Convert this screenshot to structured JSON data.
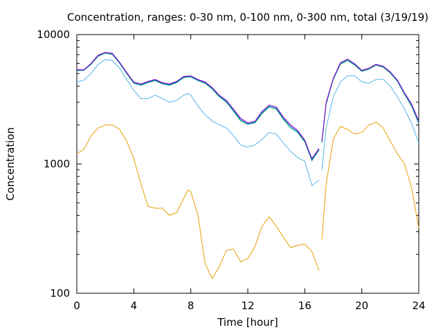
{
  "chart_data": {
    "type": "line",
    "title": "Concentration, ranges: 0-30 nm, 0-100 nm, 0-300 nm, total (3/19/19)",
    "xlabel": "Time [hour]",
    "ylabel": "Concentration",
    "xlim": [
      0,
      24
    ],
    "ylim": [
      100,
      10000
    ],
    "yscale": "log",
    "grid": false,
    "x_ticks": [
      0,
      4,
      8,
      12,
      16,
      20,
      24
    ],
    "x_tick_labels": [
      "0",
      "4",
      "8",
      "12",
      "16",
      "20",
      "24"
    ],
    "y_ticks": [
      100,
      1000,
      10000
    ],
    "y_tick_labels": [
      "100",
      "1000",
      "10000"
    ],
    "series": [
      {
        "color": "#e69f00",
        "segments": [
          [
            [
              0,
              1200
            ],
            [
              0.5,
              1300
            ],
            [
              1,
              1650
            ],
            [
              1.5,
              1900
            ],
            [
              2,
              2000
            ],
            [
              2.5,
              2000
            ],
            [
              3,
              1850
            ],
            [
              3.5,
              1500
            ],
            [
              4,
              1100
            ],
            [
              4.5,
              700
            ],
            [
              5,
              470
            ],
            [
              5.5,
              455
            ],
            [
              6,
              455
            ],
            [
              6.5,
              400
            ],
            [
              7,
              420
            ],
            [
              7.5,
              540
            ],
            [
              7.8,
              630
            ],
            [
              8,
              610
            ],
            [
              8.5,
              400
            ],
            [
              9,
              170
            ],
            [
              9.5,
              130
            ],
            [
              10,
              160
            ],
            [
              10.5,
              215
            ],
            [
              11,
              220
            ],
            [
              11.5,
              175
            ],
            [
              12,
              185
            ],
            [
              12.5,
              230
            ],
            [
              13,
              330
            ],
            [
              13.5,
              390
            ],
            [
              14,
              330
            ],
            [
              14.5,
              270
            ],
            [
              15,
              225
            ],
            [
              15.5,
              235
            ],
            [
              16,
              240
            ],
            [
              16.5,
              210
            ],
            [
              17,
              150
            ]
          ],
          [
            [
              17.2,
              260
            ],
            [
              17.5,
              700
            ],
            [
              18,
              1550
            ],
            [
              18.5,
              1950
            ],
            [
              19,
              1850
            ],
            [
              19.5,
              1700
            ],
            [
              20,
              1750
            ],
            [
              20.5,
              2000
            ],
            [
              21,
              2100
            ],
            [
              21.5,
              1900
            ],
            [
              22,
              1500
            ],
            [
              22.5,
              1200
            ],
            [
              23,
              1000
            ],
            [
              23.5,
              650
            ],
            [
              24,
              320
            ]
          ]
        ]
      },
      {
        "color": "#56b4e9",
        "segments": [
          [
            [
              0,
              4300
            ],
            [
              0.5,
              4450
            ],
            [
              1,
              5000
            ],
            [
              1.5,
              5900
            ],
            [
              2,
              6400
            ],
            [
              2.5,
              6300
            ],
            [
              3,
              5500
            ],
            [
              3.5,
              4500
            ],
            [
              4,
              3700
            ],
            [
              4.5,
              3200
            ],
            [
              5,
              3200
            ],
            [
              5.5,
              3400
            ],
            [
              6,
              3200
            ],
            [
              6.5,
              3000
            ],
            [
              7,
              3100
            ],
            [
              7.5,
              3400
            ],
            [
              7.8,
              3500
            ],
            [
              8,
              3400
            ],
            [
              8.5,
              2800
            ],
            [
              9,
              2400
            ],
            [
              9.5,
              2150
            ],
            [
              10,
              2000
            ],
            [
              10.5,
              1900
            ],
            [
              11,
              1650
            ],
            [
              11.5,
              1400
            ],
            [
              12,
              1350
            ],
            [
              12.5,
              1400
            ],
            [
              13,
              1550
            ],
            [
              13.5,
              1750
            ],
            [
              14,
              1700
            ],
            [
              14.5,
              1450
            ],
            [
              15,
              1250
            ],
            [
              15.5,
              1120
            ],
            [
              16,
              1050
            ],
            [
              16.5,
              680
            ],
            [
              17,
              750
            ]
          ],
          [
            [
              17.2,
              900
            ],
            [
              17.5,
              1900
            ],
            [
              18,
              3300
            ],
            [
              18.5,
              4300
            ],
            [
              19,
              4800
            ],
            [
              19.5,
              4800
            ],
            [
              20,
              4300
            ],
            [
              20.5,
              4200
            ],
            [
              21,
              4500
            ],
            [
              21.5,
              4500
            ],
            [
              22,
              4000
            ],
            [
              22.5,
              3300
            ],
            [
              23,
              2650
            ],
            [
              23.5,
              2050
            ],
            [
              24,
              1450
            ]
          ]
        ]
      },
      {
        "color": "#009e73",
        "segments": [
          [
            [
              0,
              5250
            ],
            [
              0.5,
              5300
            ],
            [
              1,
              5900
            ],
            [
              1.5,
              6800
            ],
            [
              2,
              7200
            ],
            [
              2.5,
              7000
            ],
            [
              3,
              6000
            ],
            [
              3.5,
              5000
            ],
            [
              4,
              4200
            ],
            [
              4.5,
              4050
            ],
            [
              5,
              4250
            ],
            [
              5.5,
              4400
            ],
            [
              6,
              4150
            ],
            [
              6.5,
              4050
            ],
            [
              7,
              4250
            ],
            [
              7.5,
              4650
            ],
            [
              8,
              4700
            ],
            [
              8.5,
              4400
            ],
            [
              9,
              4200
            ],
            [
              9.5,
              3800
            ],
            [
              10,
              3300
            ],
            [
              10.5,
              3000
            ],
            [
              11,
              2550
            ],
            [
              11.5,
              2150
            ],
            [
              12,
              2020
            ],
            [
              12.5,
              2080
            ],
            [
              13,
              2450
            ],
            [
              13.5,
              2750
            ],
            [
              14,
              2650
            ],
            [
              14.5,
              2200
            ],
            [
              15,
              1900
            ],
            [
              15.5,
              1750
            ],
            [
              16,
              1480
            ],
            [
              16.5,
              1060
            ],
            [
              17,
              1280
            ]
          ],
          [
            [
              17.2,
              1450
            ],
            [
              17.5,
              2900
            ],
            [
              18,
              4500
            ],
            [
              18.5,
              5900
            ],
            [
              19,
              6300
            ],
            [
              19.5,
              5800
            ],
            [
              20,
              5200
            ],
            [
              20.5,
              5400
            ],
            [
              21,
              5800
            ],
            [
              21.5,
              5600
            ],
            [
              22,
              5050
            ],
            [
              22.5,
              4350
            ],
            [
              23,
              3450
            ],
            [
              23.5,
              2800
            ],
            [
              24,
              2050
            ]
          ]
        ]
      },
      {
        "color": "#0072b2",
        "segments": [
          [
            [
              0,
              5300
            ],
            [
              0.5,
              5300
            ],
            [
              1,
              5950
            ],
            [
              1.5,
              6900
            ],
            [
              2,
              7250
            ],
            [
              2.5,
              7100
            ],
            [
              3,
              6050
            ],
            [
              3.5,
              5050
            ],
            [
              4,
              4250
            ],
            [
              4.5,
              4100
            ],
            [
              5,
              4300
            ],
            [
              5.5,
              4450
            ],
            [
              6,
              4200
            ],
            [
              6.5,
              4100
            ],
            [
              7,
              4300
            ],
            [
              7.5,
              4700
            ],
            [
              8,
              4750
            ],
            [
              8.5,
              4450
            ],
            [
              9,
              4250
            ],
            [
              9.5,
              3850
            ],
            [
              10,
              3350
            ],
            [
              10.5,
              3050
            ],
            [
              11,
              2600
            ],
            [
              11.5,
              2200
            ],
            [
              12,
              2050
            ],
            [
              12.5,
              2100
            ],
            [
              13,
              2500
            ],
            [
              13.5,
              2800
            ],
            [
              14,
              2700
            ],
            [
              14.5,
              2250
            ],
            [
              15,
              1950
            ],
            [
              15.5,
              1780
            ],
            [
              16,
              1500
            ],
            [
              16.5,
              1080
            ],
            [
              17,
              1300
            ]
          ],
          [
            [
              17.2,
              1480
            ],
            [
              17.5,
              2950
            ],
            [
              18,
              4550
            ],
            [
              18.5,
              6000
            ],
            [
              19,
              6400
            ],
            [
              19.5,
              5900
            ],
            [
              20,
              5250
            ],
            [
              20.5,
              5450
            ],
            [
              21,
              5850
            ],
            [
              21.5,
              5650
            ],
            [
              22,
              5100
            ],
            [
              22.5,
              4400
            ],
            [
              23,
              3500
            ],
            [
              23.5,
              2850
            ],
            [
              24,
              2100
            ]
          ]
        ]
      },
      {
        "color": "#9400d3",
        "segments": [
          [
            [
              0,
              5350
            ],
            [
              0.5,
              5350
            ],
            [
              1,
              6000
            ],
            [
              1.5,
              6950
            ],
            [
              2,
              7300
            ],
            [
              2.5,
              7150
            ],
            [
              3,
              6100
            ],
            [
              3.5,
              5100
            ],
            [
              4,
              4300
            ],
            [
              4.5,
              4150
            ],
            [
              5,
              4350
            ],
            [
              5.5,
              4500
            ],
            [
              6,
              4250
            ],
            [
              6.5,
              4150
            ],
            [
              7,
              4350
            ],
            [
              7.5,
              4750
            ],
            [
              8,
              4800
            ],
            [
              8.5,
              4500
            ],
            [
              9,
              4300
            ],
            [
              9.5,
              3900
            ],
            [
              10,
              3400
            ],
            [
              10.5,
              3100
            ],
            [
              11,
              2650
            ],
            [
              11.5,
              2250
            ],
            [
              12,
              2080
            ],
            [
              12.5,
              2130
            ],
            [
              13,
              2550
            ],
            [
              13.5,
              2850
            ],
            [
              14,
              2750
            ],
            [
              14.5,
              2300
            ],
            [
              15,
              2000
            ],
            [
              15.5,
              1820
            ],
            [
              16,
              1530
            ],
            [
              16.5,
              1100
            ],
            [
              17,
              1320
            ]
          ],
          [
            [
              17.2,
              1500
            ],
            [
              17.5,
              3000
            ],
            [
              18,
              4600
            ],
            [
              18.5,
              6050
            ],
            [
              19,
              6450
            ],
            [
              19.5,
              5950
            ],
            [
              20,
              5300
            ],
            [
              20.5,
              5500
            ],
            [
              21,
              5900
            ],
            [
              21.5,
              5700
            ],
            [
              22,
              5150
            ],
            [
              22.5,
              4450
            ],
            [
              23,
              3550
            ],
            [
              23.5,
              2900
            ],
            [
              24,
              2150
            ]
          ]
        ]
      }
    ]
  }
}
